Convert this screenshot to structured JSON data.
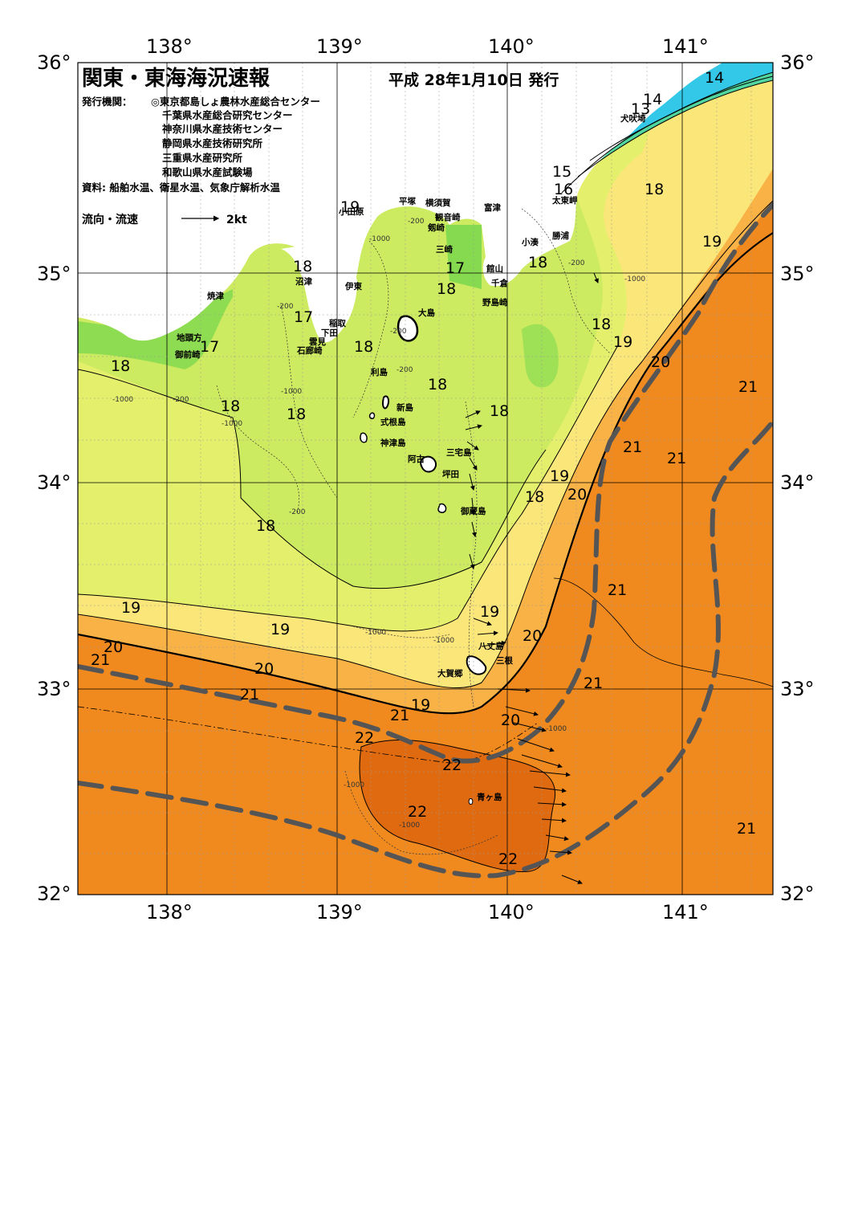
{
  "title": "関東・東海海況速報",
  "issue_date": "平成 28年1月10日 発行",
  "publisher_label": "発行機関：",
  "publishers": [
    "◎東京都島しょ農林水産総合センター",
    "千葉県水産総合研究センター",
    "神奈川県水産技術センター",
    "静岡県水産技術研究所",
    "三重県水産研究所",
    "和歌山県水産試験場"
  ],
  "source": "資料: 船舶水温、衛星水温、気象庁解析水温",
  "legend": {
    "label": "流向・流速",
    "scale": "2kt"
  },
  "axes": {
    "longitude_labels": [
      "138°",
      "139°",
      "140°",
      "141°"
    ],
    "latitude_labels": [
      "36°",
      "35°",
      "34°",
      "33°",
      "32°"
    ]
  },
  "colors": {
    "land": "#ffffff",
    "t13_15": "#33c8e8",
    "t15_16": "#52d6a0",
    "t16_17": "#7ed84e",
    "t17_18": "#b8e85a",
    "t18_19": "#e4ef6c",
    "t19_20": "#fbe67a",
    "t20_21": "#f8b246",
    "t21_22": "#f08a1e",
    "t22": "#e06a10",
    "kuroshio_axis": "#555555"
  },
  "place_names": [
    "小田原",
    "平塚",
    "横須賀",
    "観音崎",
    "剱崎",
    "三崎",
    "富津",
    "館山",
    "千倉",
    "野島崎",
    "犬吠埼",
    "太東岬",
    "勝浦",
    "小湊",
    "沼津",
    "伊東",
    "焼津",
    "稲取",
    "下田",
    "雲見",
    "石廊崎",
    "地頭方",
    "御前崎",
    "大島",
    "利島",
    "新島",
    "式根島",
    "神津島",
    "三宅島",
    "阿古",
    "坪田",
    "御蔵島",
    "八丈島",
    "三根",
    "大賀郷",
    "青ヶ島"
  ],
  "isotherm_labels": [
    "13",
    "14",
    "14",
    "15",
    "16",
    "17",
    "17",
    "17",
    "18",
    "18",
    "18",
    "18",
    "18",
    "18",
    "18",
    "18",
    "18",
    "18",
    "18",
    "18",
    "18",
    "19",
    "19",
    "19",
    "19",
    "19",
    "19",
    "19",
    "20",
    "20",
    "20",
    "20",
    "20",
    "20",
    "21",
    "21",
    "21",
    "21",
    "21",
    "21",
    "21",
    "21",
    "21",
    "22",
    "22",
    "22",
    "22"
  ],
  "depth_labels": [
    "-200",
    "-1000"
  ]
}
